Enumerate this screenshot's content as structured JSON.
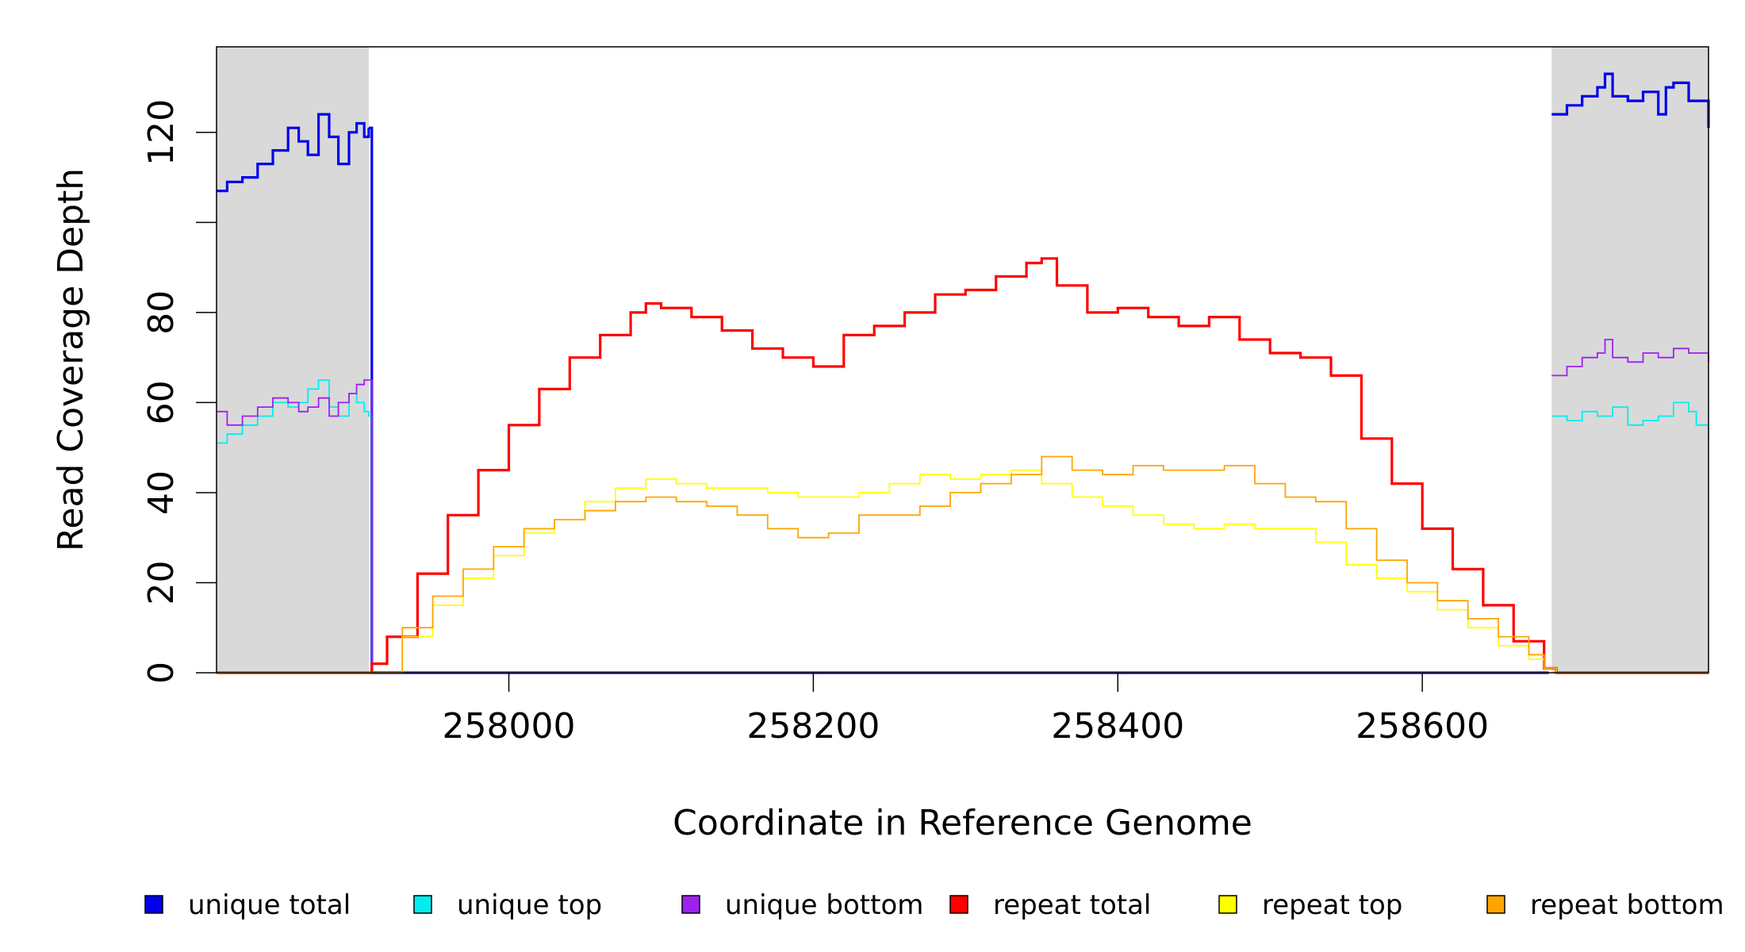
{
  "chart_data": {
    "type": "line",
    "title": "",
    "xlabel": "Coordinate in Reference Genome",
    "ylabel": "Read Coverage Depth",
    "xlim": [
      257808,
      258788
    ],
    "ylim": [
      0,
      139
    ],
    "x_ticks": [
      258000,
      258200,
      258400,
      258600
    ],
    "x_tick_labels": [
      "258000",
      "258200",
      "258400",
      "258600"
    ],
    "y_ticks": [
      0,
      20,
      40,
      60,
      80,
      100,
      120
    ],
    "y_tick_labels": [
      "0",
      "20",
      "40",
      "60",
      "80",
      "",
      "120"
    ],
    "grid": false,
    "legend_position": "bottom",
    "shaded_regions": [
      {
        "x": [
          257808,
          257908
        ],
        "color": "#d9d9d9"
      },
      {
        "x": [
          258685,
          258788
        ],
        "color": "#d9d9d9"
      }
    ],
    "series": [
      {
        "name": "unique total",
        "color": "#0000ee",
        "segments": [
          {
            "x": [
              257808,
              257815,
              257825,
              257835,
              257845,
              257855,
              257862,
              257868,
              257875,
              257882,
              257888,
              257895,
              257900,
              257905,
              257908
            ],
            "y": [
              107,
              109,
              110,
              113,
              116,
              121,
              118,
              115,
              124,
              119,
              113,
              120,
              122,
              119,
              121
            ]
          },
          {
            "x": [
              257908,
              257910,
              258680,
              258683
            ],
            "y": [
              121,
              0,
              0,
              0
            ]
          },
          {
            "x": [
              258685,
              258695,
              258705,
              258715,
              258720,
              258725,
              258735,
              258745,
              258755,
              258760,
              258765,
              258775,
              258788
            ],
            "y": [
              124,
              126,
              128,
              130,
              133,
              128,
              127,
              129,
              124,
              130,
              131,
              127,
              121
            ]
          }
        ]
      },
      {
        "name": "unique top",
        "color": "#00eeee",
        "segments": [
          {
            "x": [
              257808,
              257815,
              257825,
              257835,
              257845,
              257855,
              257862,
              257868,
              257875,
              257882,
              257888,
              257895,
              257900,
              257905,
              257908
            ],
            "y": [
              51,
              53,
              55,
              57,
              60,
              59,
              60,
              63,
              65,
              59,
              57,
              62,
              60,
              58,
              57
            ]
          },
          {
            "x": [
              257908,
              257910,
              258680,
              258683
            ],
            "y": [
              57,
              0,
              0,
              0
            ]
          },
          {
            "x": [
              258685,
              258695,
              258705,
              258715,
              258725,
              258735,
              258745,
              258755,
              258765,
              258775,
              258780,
              258788
            ],
            "y": [
              57,
              56,
              58,
              57,
              59,
              55,
              56,
              57,
              60,
              58,
              55,
              52
            ]
          }
        ]
      },
      {
        "name": "unique bottom",
        "color": "#a020f0",
        "segments": [
          {
            "x": [
              257808,
              257815,
              257825,
              257835,
              257845,
              257855,
              257862,
              257868,
              257875,
              257882,
              257888,
              257895,
              257900,
              257905,
              257908
            ],
            "y": [
              58,
              55,
              57,
              59,
              61,
              60,
              58,
              59,
              61,
              57,
              60,
              62,
              64,
              65,
              65
            ]
          },
          {
            "x": [
              257908,
              257910,
              258680,
              258683
            ],
            "y": [
              65,
              0,
              0,
              0
            ]
          },
          {
            "x": [
              258685,
              258695,
              258705,
              258715,
              258720,
              258725,
              258735,
              258745,
              258755,
              258765,
              258775,
              258788
            ],
            "y": [
              66,
              68,
              70,
              71,
              74,
              70,
              69,
              71,
              70,
              72,
              71,
              69
            ]
          }
        ]
      },
      {
        "name": "repeat total",
        "color": "#ff0000",
        "segments": [
          {
            "x": [
              257808,
              257908,
              257910,
              257920,
              257940,
              257960,
              257980,
              258000,
              258020,
              258040,
              258060,
              258080,
              258090,
              258100,
              258120,
              258140,
              258160,
              258180,
              258200,
              258220,
              258240,
              258260,
              258280,
              258300,
              258320,
              258340,
              258350,
              258360,
              258380,
              258400,
              258420,
              258440,
              258460,
              258480,
              258500,
              258520,
              258540,
              258560,
              258580,
              258600,
              258620,
              258640,
              258660,
              258680,
              258688,
              258788
            ],
            "y": [
              0,
              0,
              2,
              8,
              22,
              35,
              45,
              55,
              63,
              70,
              75,
              80,
              82,
              81,
              79,
              76,
              72,
              70,
              68,
              75,
              77,
              80,
              84,
              85,
              88,
              91,
              92,
              86,
              80,
              81,
              79,
              77,
              79,
              74,
              71,
              70,
              66,
              52,
              42,
              32,
              23,
              15,
              7,
              1,
              0,
              0
            ]
          }
        ]
      },
      {
        "name": "repeat top",
        "color": "#ffff00",
        "segments": [
          {
            "x": [
              257808,
              257908,
              257910,
              257930,
              257950,
              257970,
              257990,
              258010,
              258030,
              258050,
              258070,
              258090,
              258110,
              258130,
              258150,
              258170,
              258190,
              258210,
              258230,
              258250,
              258270,
              258290,
              258310,
              258330,
              258350,
              258370,
              258390,
              258410,
              258430,
              258450,
              258470,
              258490,
              258510,
              258530,
              258550,
              258570,
              258590,
              258610,
              258630,
              258650,
              258670,
              258680,
              258688,
              258788
            ],
            "y": [
              0,
              0,
              0,
              8,
              15,
              21,
              26,
              31,
              34,
              38,
              41,
              43,
              42,
              41,
              41,
              40,
              39,
              39,
              40,
              42,
              44,
              43,
              44,
              45,
              42,
              39,
              37,
              35,
              33,
              32,
              33,
              32,
              32,
              29,
              24,
              21,
              18,
              14,
              10,
              6,
              3,
              1,
              0,
              0
            ]
          }
        ]
      },
      {
        "name": "repeat bottom",
        "color": "#ffa500",
        "segments": [
          {
            "x": [
              257808,
              257908,
              257910,
              257930,
              257950,
              257970,
              257990,
              258010,
              258030,
              258050,
              258070,
              258090,
              258110,
              258130,
              258150,
              258170,
              258190,
              258210,
              258230,
              258250,
              258270,
              258290,
              258310,
              258330,
              258350,
              258370,
              258390,
              258410,
              258430,
              258450,
              258470,
              258490,
              258510,
              258530,
              258550,
              258570,
              258590,
              258610,
              258630,
              258650,
              258670,
              258680,
              258688,
              258788
            ],
            "y": [
              0,
              0,
              0,
              10,
              17,
              23,
              28,
              32,
              34,
              36,
              38,
              39,
              38,
              37,
              35,
              32,
              30,
              31,
              35,
              35,
              37,
              40,
              42,
              44,
              48,
              45,
              44,
              46,
              45,
              45,
              46,
              42,
              39,
              38,
              32,
              25,
              20,
              16,
              12,
              8,
              4,
              1,
              0,
              0
            ]
          }
        ]
      }
    ]
  }
}
